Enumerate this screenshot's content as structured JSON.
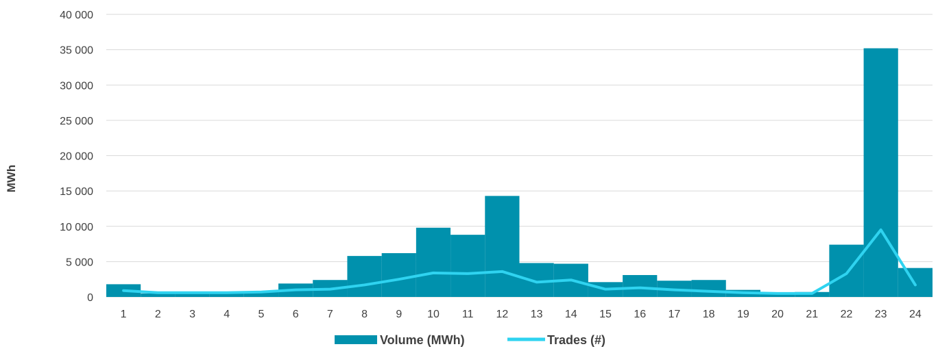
{
  "chart_data": {
    "type": "bar",
    "ylabel": "MWh",
    "ylim": [
      0,
      40000
    ],
    "y_ticks": [
      0,
      5000,
      10000,
      15000,
      20000,
      25000,
      30000,
      35000,
      40000
    ],
    "y_tick_labels": [
      "0",
      "5 000",
      "10 000",
      "15 000",
      "20 000",
      "25 000",
      "30 000",
      "35 000",
      "40 000"
    ],
    "grid": true,
    "legend_position": "bottom",
    "categories": [
      "1",
      "2",
      "3",
      "4",
      "5",
      "6",
      "7",
      "8",
      "9",
      "10",
      "11",
      "12",
      "13",
      "14",
      "15",
      "16",
      "17",
      "18",
      "19",
      "20",
      "21",
      "22",
      "23",
      "24"
    ],
    "series": [
      {
        "name": "Volume (MWh)",
        "type": "bar",
        "color": "#0091ad",
        "values": [
          1800,
          500,
          500,
          500,
          700,
          1900,
          2400,
          5800,
          6200,
          9800,
          8800,
          14300,
          4800,
          4700,
          2100,
          3100,
          2300,
          2400,
          1000,
          600,
          700,
          7400,
          35200,
          4100
        ]
      },
      {
        "name": "Trades (#)",
        "type": "line",
        "color": "#2fd3f0",
        "values": [
          900,
          600,
          600,
          600,
          700,
          1000,
          1100,
          1700,
          2500,
          3400,
          3300,
          3600,
          2100,
          2400,
          1100,
          1300,
          1000,
          800,
          600,
          500,
          500,
          3300,
          9500,
          1700
        ]
      }
    ]
  }
}
